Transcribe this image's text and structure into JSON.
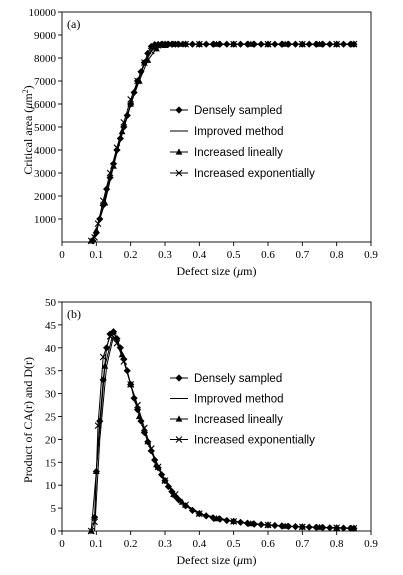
{
  "chart_data": [
    {
      "type": "line",
      "panel_label": "(a)",
      "xlabel": "Defect size (μm)",
      "ylabel": "Critical area (μm²)",
      "xlim": [
        0,
        0.9
      ],
      "ylim": [
        0,
        10000
      ],
      "x_ticks": [
        "0",
        "0.1",
        "0.2",
        "0.3",
        "0.4",
        "0.5",
        "0.6",
        "0.7",
        "0.8",
        "0.9"
      ],
      "y_ticks": [
        "1000",
        "2000",
        "3000",
        "4000",
        "5000",
        "6000",
        "7000",
        "8000",
        "9000",
        "10000"
      ],
      "legend_position": "center-right",
      "series": [
        {
          "name": "Densely sampled",
          "marker": "diamond",
          "x": [
            0.09,
            0.1,
            0.11,
            0.12,
            0.13,
            0.14,
            0.15,
            0.16,
            0.17,
            0.18,
            0.19,
            0.2,
            0.21,
            0.22,
            0.23,
            0.24,
            0.25,
            0.26,
            0.27,
            0.28,
            0.29,
            0.3,
            0.31,
            0.32,
            0.33,
            0.34,
            0.36,
            0.38,
            0.4,
            0.42,
            0.44,
            0.46,
            0.48,
            0.5,
            0.52,
            0.54,
            0.56,
            0.58,
            0.6,
            0.62,
            0.64,
            0.66,
            0.68,
            0.7,
            0.72,
            0.74,
            0.76,
            0.78,
            0.8,
            0.82,
            0.84,
            0.85
          ],
          "y": [
            50,
            400,
            1000,
            1600,
            2300,
            2800,
            3400,
            4000,
            4500,
            5000,
            5500,
            6000,
            6500,
            7000,
            7400,
            7800,
            8200,
            8500,
            8580,
            8590,
            8600,
            8600,
            8600,
            8600,
            8600,
            8600,
            8600,
            8600,
            8600,
            8600,
            8600,
            8600,
            8600,
            8600,
            8600,
            8600,
            8600,
            8600,
            8600,
            8600,
            8600,
            8600,
            8600,
            8600,
            8600,
            8600,
            8600,
            8600,
            8600,
            8600,
            8600,
            8600
          ]
        },
        {
          "name": "Improved method",
          "marker": "none",
          "x": [
            0.09,
            0.12,
            0.15,
            0.18,
            0.21,
            0.24,
            0.27,
            0.3,
            0.33,
            0.35,
            0.45,
            0.55,
            0.65,
            0.75,
            0.85
          ],
          "y": [
            50,
            1500,
            3350,
            4950,
            6450,
            7750,
            8550,
            8600,
            8600,
            8600,
            8600,
            8600,
            8600,
            8600,
            8600
          ]
        },
        {
          "name": "Increased lineally",
          "marker": "triangle",
          "x": [
            0.085,
            0.1,
            0.125,
            0.15,
            0.175,
            0.2,
            0.225,
            0.25,
            0.275,
            0.3,
            0.325,
            0.35,
            0.4,
            0.45,
            0.5,
            0.55,
            0.6,
            0.65,
            0.7,
            0.75,
            0.8,
            0.85
          ],
          "y": [
            50,
            500,
            1700,
            3300,
            4800,
            6000,
            7000,
            7900,
            8400,
            8550,
            8600,
            8600,
            8600,
            8600,
            8600,
            8600,
            8600,
            8600,
            8600,
            8600,
            8600,
            8600
          ]
        },
        {
          "name": "Increased exponentially",
          "marker": "x",
          "x": [
            0.085,
            0.095,
            0.105,
            0.12,
            0.14,
            0.16,
            0.18,
            0.2,
            0.22,
            0.24,
            0.26,
            0.28,
            0.3,
            0.33,
            0.36,
            0.4,
            0.45,
            0.5,
            0.55,
            0.6,
            0.65,
            0.7,
            0.75,
            0.8,
            0.85
          ],
          "y": [
            50,
            200,
            800,
            1800,
            3000,
            4100,
            5200,
            6200,
            7000,
            7800,
            8300,
            8550,
            8600,
            8600,
            8600,
            8600,
            8600,
            8600,
            8600,
            8600,
            8600,
            8600,
            8600,
            8600,
            8600
          ]
        }
      ]
    },
    {
      "type": "line",
      "panel_label": "(b)",
      "xlabel": "Defect size (μm)",
      "ylabel": "Product of CA(r) and D(r)",
      "xlim": [
        0,
        0.9
      ],
      "ylim": [
        0,
        50
      ],
      "x_ticks": [
        "0",
        "0.1",
        "0.2",
        "0.3",
        "0.4",
        "0.5",
        "0.6",
        "0.7",
        "0.8",
        "0.9"
      ],
      "y_ticks": [
        "0",
        "5",
        "10",
        "15",
        "20",
        "25",
        "30",
        "35",
        "40",
        "45",
        "50"
      ],
      "legend_position": "center-right",
      "series": [
        {
          "name": "Densely sampled",
          "marker": "diamond",
          "x": [
            0.095,
            0.1,
            0.11,
            0.12,
            0.13,
            0.14,
            0.15,
            0.16,
            0.17,
            0.18,
            0.19,
            0.2,
            0.21,
            0.22,
            0.23,
            0.24,
            0.25,
            0.26,
            0.27,
            0.28,
            0.29,
            0.3,
            0.31,
            0.32,
            0.33,
            0.34,
            0.36,
            0.38,
            0.4,
            0.42,
            0.44,
            0.46,
            0.48,
            0.5,
            0.52,
            0.54,
            0.56,
            0.58,
            0.6,
            0.62,
            0.64,
            0.66,
            0.68,
            0.7,
            0.72,
            0.74,
            0.76,
            0.78,
            0.8,
            0.82,
            0.84,
            0.85
          ],
          "y": [
            3,
            13,
            24,
            33,
            40,
            43,
            43.5,
            42,
            40,
            37.5,
            35,
            32,
            29,
            26.5,
            24,
            21.5,
            19.5,
            17.5,
            15.5,
            13.8,
            12.3,
            11,
            9.7,
            8.6,
            7.6,
            6.8,
            5.5,
            4.5,
            3.8,
            3.3,
            2.9,
            2.6,
            2.3,
            2.1,
            1.9,
            1.7,
            1.5,
            1.4,
            1.3,
            1.2,
            1.1,
            1.0,
            0.95,
            0.9,
            0.85,
            0.8,
            0.75,
            0.7,
            0.65,
            0.62,
            0.6,
            0.58
          ]
        },
        {
          "name": "Improved method",
          "marker": "none",
          "x": [
            0.095,
            0.11,
            0.13,
            0.15,
            0.17,
            0.2,
            0.23,
            0.26,
            0.3,
            0.35,
            0.4,
            0.5,
            0.6,
            0.7,
            0.85
          ],
          "y": [
            0,
            20,
            36,
            42.5,
            40,
            32,
            24,
            17.5,
            11,
            6.2,
            3.8,
            2.1,
            1.3,
            0.9,
            0.6
          ]
        },
        {
          "name": "Increased lineally",
          "marker": "triangle",
          "x": [
            0.085,
            0.1,
            0.125,
            0.15,
            0.175,
            0.2,
            0.225,
            0.25,
            0.275,
            0.3,
            0.325,
            0.35,
            0.4,
            0.45,
            0.5,
            0.55,
            0.6,
            0.65,
            0.7,
            0.75,
            0.8,
            0.85
          ],
          "y": [
            0,
            13,
            36,
            43.5,
            38.5,
            32,
            25,
            19.5,
            14.5,
            11,
            8,
            6.3,
            3.8,
            2.7,
            2.1,
            1.6,
            1.3,
            1.05,
            0.9,
            0.8,
            0.7,
            0.6
          ]
        },
        {
          "name": "Increased exponentially",
          "marker": "x",
          "x": [
            0.085,
            0.095,
            0.105,
            0.12,
            0.14,
            0.16,
            0.18,
            0.2,
            0.22,
            0.24,
            0.26,
            0.28,
            0.3,
            0.33,
            0.36,
            0.4,
            0.45,
            0.5,
            0.55,
            0.6,
            0.65,
            0.7,
            0.75,
            0.8,
            0.85
          ],
          "y": [
            0,
            2,
            23,
            38,
            42.5,
            41,
            37,
            32,
            27.5,
            22.5,
            18,
            14,
            11,
            8,
            5.7,
            3.8,
            2.7,
            2.1,
            1.6,
            1.3,
            1.05,
            0.9,
            0.8,
            0.7,
            0.6
          ]
        }
      ]
    }
  ]
}
